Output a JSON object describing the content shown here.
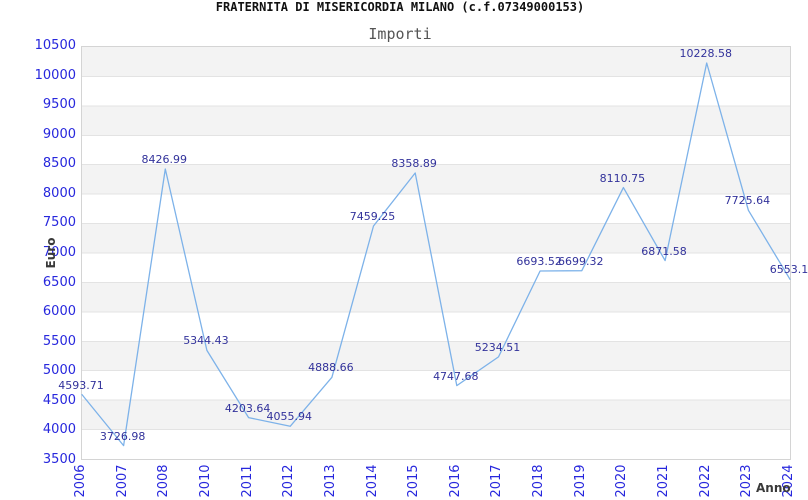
{
  "page": {
    "background": "#ffffff"
  },
  "chart_data": {
    "type": "line",
    "title": "FRATERNITA DI MISERICORDIA MILANO (c.f.07349000153)",
    "subtitle": "Importi",
    "xlabel": "Anno",
    "ylabel": "Euro",
    "x": [
      "2006",
      "2007",
      "2008",
      "2010",
      "2011",
      "2012",
      "2013",
      "2014",
      "2015",
      "2016",
      "2017",
      "2018",
      "2019",
      "2020",
      "2021",
      "2022",
      "2023",
      "2024"
    ],
    "series": [
      {
        "name": "Importi",
        "values": [
          4593.71,
          3726.98,
          8426.99,
          5344.43,
          4203.64,
          4055.94,
          4888.66,
          7459.25,
          8358.89,
          4747.68,
          5234.51,
          6693.52,
          6699.32,
          8110.75,
          6871.58,
          10228.58,
          7725.64,
          6553.1
        ],
        "point_labels": [
          "4593.71",
          "3726.98",
          "8426.99",
          "5344.43",
          "4203.64",
          "4055.94",
          "4888.66",
          "7459.25",
          "8358.89",
          "4747.68",
          "5234.51",
          "6693.52",
          "6699.32",
          "8110.75",
          "6871.58",
          "10228.58",
          "7725.64",
          "6553.1"
        ]
      }
    ],
    "ylim": [
      3500,
      10500
    ],
    "ytick_step": 500,
    "grid": "horizontal-bands",
    "legend": "none",
    "colors": {
      "line": "#7db2e9",
      "point_label": "#32329b",
      "axis_tick_label": "#2727dd",
      "band_fill": "#f3f3f3",
      "band_alt_fill": "#ffffff",
      "gridline": "#e3e3e3",
      "plot_border": "#d4d4d4",
      "title": "#111111",
      "subtitle": "#555555",
      "axis_title": "#3a3a3a"
    }
  }
}
